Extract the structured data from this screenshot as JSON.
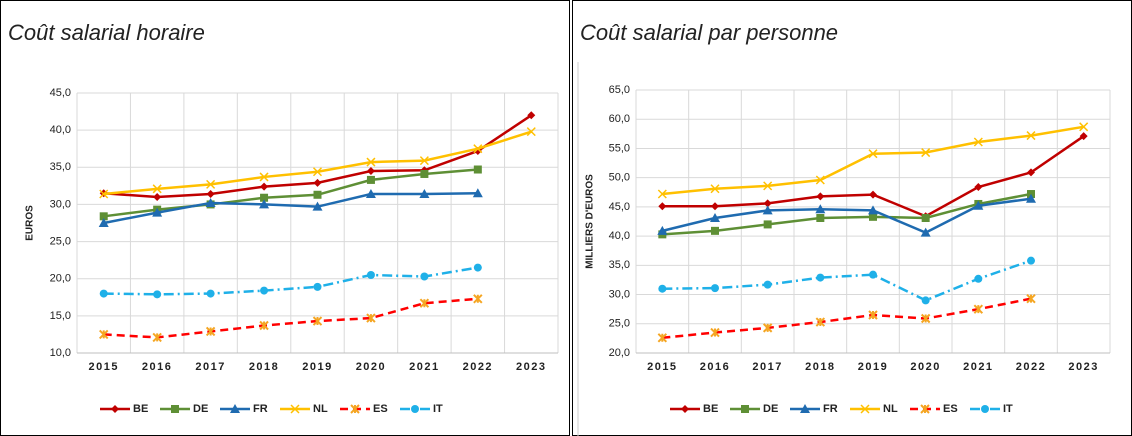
{
  "chart_data": [
    {
      "type": "line",
      "title": "Coût salarial horaire",
      "y_label": "EUROS",
      "categories": [
        "2015",
        "2016",
        "2017",
        "2018",
        "2019",
        "2020",
        "2021",
        "2022",
        "2023"
      ],
      "ylim": [
        10,
        45
      ],
      "yticks": [
        {
          "value": 10,
          "label": "10,0"
        },
        {
          "value": 15,
          "label": "15,0"
        },
        {
          "value": 20,
          "label": "20,0"
        },
        {
          "value": 25,
          "label": "25,0"
        },
        {
          "value": 30,
          "label": "30,0"
        },
        {
          "value": 35,
          "label": "35,0"
        },
        {
          "value": 40,
          "label": "40,0"
        },
        {
          "value": 45,
          "label": "45,0"
        }
      ],
      "grid": true,
      "legend": "bottom",
      "series": [
        {
          "name": "BE",
          "color": "#c00000",
          "marker": "diamond",
          "dash": "solid",
          "values": [
            31.5,
            31.0,
            31.4,
            32.4,
            32.9,
            34.5,
            34.6,
            37.2,
            42.0
          ]
        },
        {
          "name": "DE",
          "color": "#5e8f35",
          "marker": "square",
          "dash": "solid",
          "values": [
            28.4,
            29.3,
            30.0,
            30.9,
            31.3,
            33.3,
            34.1,
            34.7,
            null
          ]
        },
        {
          "name": "FR",
          "color": "#1f6bb0",
          "marker": "triangle",
          "dash": "solid",
          "values": [
            27.5,
            28.9,
            30.2,
            30.0,
            29.7,
            31.4,
            31.4,
            31.5,
            null
          ]
        },
        {
          "name": "NL",
          "color": "#ffc000",
          "marker": "x",
          "dash": "solid",
          "values": [
            31.4,
            32.1,
            32.7,
            33.7,
            34.4,
            35.7,
            35.9,
            37.5,
            39.8
          ]
        },
        {
          "name": "ES",
          "color": "#ff0000",
          "marker": "star",
          "dash": "dash",
          "values": [
            12.5,
            12.1,
            12.9,
            13.7,
            14.3,
            14.7,
            16.7,
            17.3,
            null
          ]
        },
        {
          "name": "IT",
          "color": "#1fb0e8",
          "marker": "circle",
          "dash": "dashdot",
          "values": [
            18.0,
            17.9,
            18.0,
            18.4,
            18.9,
            20.5,
            20.3,
            21.5,
            null
          ]
        }
      ]
    },
    {
      "type": "line",
      "title": "Coût salarial par personne",
      "y_label": "MILLIERS D'EUROS",
      "categories": [
        "2015",
        "2016",
        "2017",
        "2018",
        "2019",
        "2020",
        "2021",
        "2022",
        "2023"
      ],
      "ylim": [
        20,
        65
      ],
      "yticks": [
        {
          "value": 20,
          "label": "20,0"
        },
        {
          "value": 25,
          "label": "25,0"
        },
        {
          "value": 30,
          "label": "30,0"
        },
        {
          "value": 35,
          "label": "35,0"
        },
        {
          "value": 40,
          "label": "40,0"
        },
        {
          "value": 45,
          "label": "45,0"
        },
        {
          "value": 50,
          "label": "50,0"
        },
        {
          "value": 55,
          "label": "55,0"
        },
        {
          "value": 60,
          "label": "60,0"
        },
        {
          "value": 65,
          "label": "65,0"
        }
      ],
      "grid": true,
      "legend": "bottom",
      "series": [
        {
          "name": "BE",
          "color": "#c00000",
          "marker": "diamond",
          "dash": "solid",
          "values": [
            45.1,
            45.1,
            45.6,
            46.8,
            47.1,
            43.4,
            48.4,
            50.9,
            57.1
          ]
        },
        {
          "name": "DE",
          "color": "#5e8f35",
          "marker": "square",
          "dash": "solid",
          "values": [
            40.3,
            40.9,
            42.0,
            43.1,
            43.3,
            43.1,
            45.5,
            47.2,
            null
          ]
        },
        {
          "name": "FR",
          "color": "#1f6bb0",
          "marker": "triangle",
          "dash": "solid",
          "values": [
            40.9,
            43.1,
            44.4,
            44.6,
            44.4,
            40.6,
            45.2,
            46.4,
            null
          ]
        },
        {
          "name": "NL",
          "color": "#ffc000",
          "marker": "x",
          "dash": "solid",
          "values": [
            47.2,
            48.1,
            48.6,
            49.6,
            54.1,
            54.3,
            56.1,
            57.2,
            58.7
          ]
        },
        {
          "name": "ES",
          "color": "#ff0000",
          "marker": "star",
          "dash": "dash",
          "values": [
            22.6,
            23.5,
            24.3,
            25.3,
            26.5,
            25.9,
            27.5,
            29.3,
            null
          ]
        },
        {
          "name": "IT",
          "color": "#1fb0e8",
          "marker": "circle",
          "dash": "dashdot",
          "values": [
            31.0,
            31.1,
            31.7,
            32.9,
            33.4,
            29.0,
            32.7,
            35.8,
            null
          ]
        }
      ]
    }
  ]
}
